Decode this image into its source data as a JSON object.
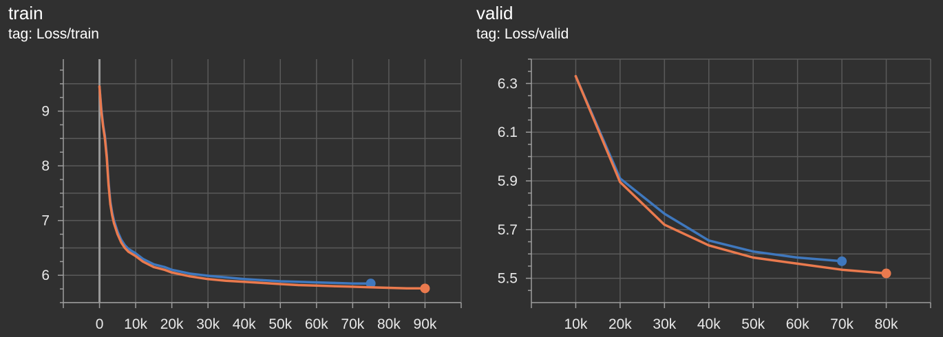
{
  "colors": {
    "background": "#303030",
    "grid": "#5a5a5a",
    "axis": "#9e9e9e",
    "series_blue": "#3f78be",
    "series_orange": "#ea7a4e"
  },
  "chart_data": [
    {
      "type": "line",
      "title": "train",
      "subtitle": "tag: Loss/train",
      "xlim": [
        -10000,
        100000
      ],
      "ylim": [
        5.5,
        9.95
      ],
      "x_ticks": [
        0,
        10000,
        20000,
        30000,
        40000,
        50000,
        60000,
        70000,
        80000,
        90000
      ],
      "x_tick_labels": [
        "0",
        "10k",
        "20k",
        "30k",
        "40k",
        "50k",
        "60k",
        "70k",
        "80k",
        "90k"
      ],
      "y_ticks": [
        6,
        7,
        8,
        9
      ],
      "y_tick_labels": [
        "6",
        "7",
        "8",
        "9"
      ],
      "grid": true,
      "vertical_marker_x": 0,
      "series": [
        {
          "color": "#3f78be",
          "x": [
            0,
            500,
            1000,
            1500,
            2000,
            2500,
            3000,
            3500,
            4000,
            5000,
            6000,
            7000,
            8000,
            10000,
            12000,
            15000,
            18000,
            20000,
            25000,
            30000,
            35000,
            40000,
            45000,
            50000,
            55000,
            60000,
            65000,
            70000,
            75000
          ],
          "y": [
            9.45,
            9.05,
            8.75,
            8.55,
            8.2,
            7.7,
            7.35,
            7.15,
            7.0,
            6.8,
            6.65,
            6.55,
            6.48,
            6.4,
            6.3,
            6.2,
            6.15,
            6.1,
            6.03,
            5.99,
            5.96,
            5.93,
            5.91,
            5.89,
            5.88,
            5.87,
            5.86,
            5.85,
            5.85
          ]
        },
        {
          "color": "#ea7a4e",
          "x": [
            0,
            500,
            1000,
            1500,
            2000,
            2500,
            3000,
            3500,
            4000,
            5000,
            6000,
            7000,
            8000,
            10000,
            12000,
            15000,
            18000,
            20000,
            25000,
            30000,
            35000,
            40000,
            45000,
            50000,
            55000,
            60000,
            65000,
            70000,
            75000,
            80000,
            85000,
            90000
          ],
          "y": [
            9.45,
            9.0,
            8.72,
            8.5,
            8.15,
            7.65,
            7.3,
            7.1,
            6.95,
            6.75,
            6.6,
            6.5,
            6.43,
            6.35,
            6.25,
            6.15,
            6.1,
            6.05,
            5.98,
            5.93,
            5.9,
            5.88,
            5.86,
            5.84,
            5.82,
            5.81,
            5.8,
            5.79,
            5.78,
            5.77,
            5.76,
            5.76
          ]
        }
      ]
    },
    {
      "type": "line",
      "title": "valid",
      "subtitle": "tag: Loss/valid",
      "xlim": [
        0,
        90000
      ],
      "ylim": [
        5.4,
        6.4
      ],
      "x_ticks": [
        10000,
        20000,
        30000,
        40000,
        50000,
        60000,
        70000,
        80000
      ],
      "x_tick_labels": [
        "10k",
        "20k",
        "30k",
        "40k",
        "50k",
        "60k",
        "70k",
        "80k"
      ],
      "y_ticks": [
        5.5,
        5.7,
        5.9,
        6.1,
        6.3
      ],
      "y_tick_labels": [
        "5.5",
        "5.7",
        "5.9",
        "6.1",
        "6.3"
      ],
      "grid": true,
      "series": [
        {
          "color": "#3f78be",
          "x": [
            10000,
            20000,
            30000,
            40000,
            50000,
            60000,
            70000
          ],
          "y": [
            6.33,
            5.91,
            5.765,
            5.655,
            5.61,
            5.585,
            5.57
          ]
        },
        {
          "color": "#ea7a4e",
          "x": [
            10000,
            20000,
            30000,
            40000,
            50000,
            60000,
            70000,
            80000
          ],
          "y": [
            6.33,
            5.895,
            5.72,
            5.635,
            5.585,
            5.56,
            5.535,
            5.52
          ]
        }
      ]
    }
  ]
}
